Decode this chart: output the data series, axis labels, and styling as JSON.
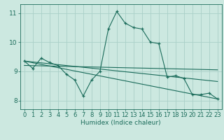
{
  "xlabel": "Humidex (Indice chaleur)",
  "background_color": "#cce8e0",
  "line_color": "#1a6b5a",
  "grid_color": "#aacfc8",
  "xlim": [
    -0.5,
    23.5
  ],
  "ylim": [
    7.7,
    11.3
  ],
  "yticks": [
    8,
    9,
    10,
    11
  ],
  "xticks": [
    0,
    1,
    2,
    3,
    4,
    5,
    6,
    7,
    8,
    9,
    10,
    11,
    12,
    13,
    14,
    15,
    16,
    17,
    18,
    19,
    20,
    21,
    22,
    23
  ],
  "series1_x": [
    0,
    1,
    2,
    3,
    4,
    5,
    6,
    7,
    8,
    9,
    10,
    11,
    12,
    13,
    14,
    15,
    16,
    17,
    18,
    19,
    20,
    21,
    22,
    23
  ],
  "series1_y": [
    9.35,
    9.1,
    9.45,
    9.3,
    9.2,
    8.9,
    8.7,
    8.15,
    8.7,
    9.0,
    10.45,
    11.05,
    10.65,
    10.5,
    10.45,
    10.0,
    9.95,
    8.8,
    8.85,
    8.75,
    8.2,
    8.2,
    8.25,
    8.05
  ],
  "trend1_x": [
    0,
    23
  ],
  "trend1_y": [
    9.35,
    8.05
  ],
  "trend2_x": [
    0,
    23
  ],
  "trend2_y": [
    9.35,
    8.65
  ],
  "trend3_x": [
    0,
    23
  ],
  "trend3_y": [
    9.2,
    9.05
  ],
  "xlabel_fontsize": 6.5,
  "tick_fontsize": 6.0
}
